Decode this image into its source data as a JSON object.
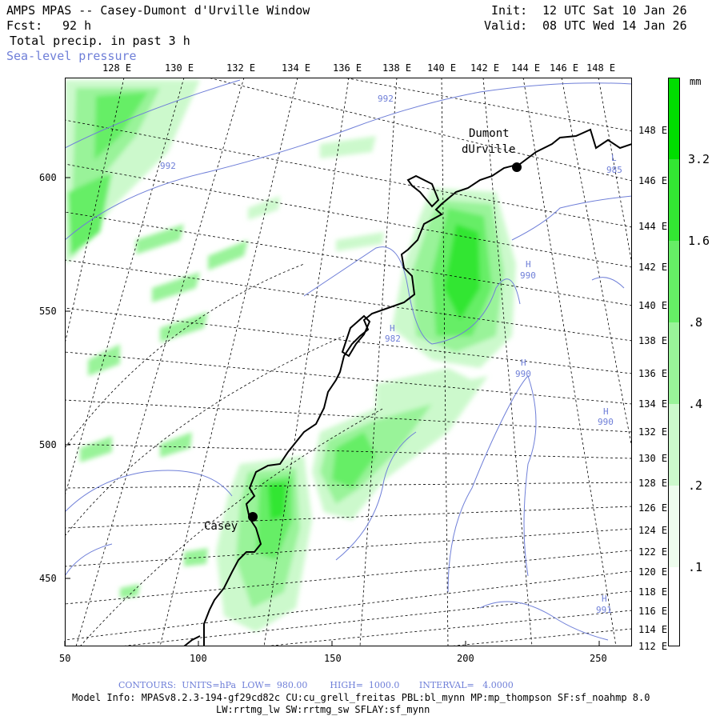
{
  "header": {
    "title": "AMPS MPAS -- Casey-Dumont d'Urville Window",
    "forecast_label": "Fcst:",
    "forecast_value": "92 h",
    "field_name": "Total precip. in past 3 h",
    "overlay_name": "Sea-level pressure",
    "init_label": "Init:",
    "init_value": "12 UTC Sat 10 Jan 26",
    "valid_label": "Valid:",
    "valid_value": "08 UTC Wed 14 Jan 26"
  },
  "top_longitudes": [
    "128 E",
    "130 E",
    "132 E",
    "134 E",
    "136 E",
    "138 E",
    "140 E",
    "142 E",
    "144 E",
    "146 E",
    "148 E"
  ],
  "right_longitudes": [
    "148 E",
    "146 E",
    "144 E",
    "142 E",
    "140 E",
    "138 E",
    "136 E",
    "134 E",
    "132 E",
    "130 E",
    "128 E",
    "126 E",
    "124 E",
    "122 E",
    "120 E",
    "118 E",
    "116 E",
    "114 E",
    "112 E"
  ],
  "x_ticks": [
    "50",
    "100",
    "150",
    "200",
    "250"
  ],
  "y_ticks": [
    "600",
    "550",
    "500",
    "450"
  ],
  "stations": [
    {
      "name_line1": "Dumont",
      "name_line2": "dUrville"
    },
    {
      "name_line1": "Casey"
    }
  ],
  "pressure_labels": [
    "992",
    "992",
    "985",
    "990",
    "982",
    "990",
    "990",
    "991"
  ],
  "high_marker": "H",
  "legend": {
    "unit": "mm",
    "levels": [
      "3.2",
      "1.6",
      ".8",
      ".4",
      ".2",
      ".1"
    ],
    "colors": [
      "#00dd00",
      "#33e633",
      "#66ee66",
      "#99f399",
      "#ccf9cc",
      "#edfced",
      "#ffffff"
    ]
  },
  "footer": {
    "contours": "CONTOURS:  UNITS=hPa  LOW=  980.00        HIGH=  1000.0       INTERVAL=   4.0000",
    "model_info": "Model Info: MPASv8.2.3-194-gf29cd82c CU:cu_grell_freitas PBL:bl_mynn MP:mp_thompson SF:sf_noahmp 8.0",
    "model_info_2": "LW:rrtmg_lw SW:rrtmg_sw SFLAY:sf_mynn"
  }
}
